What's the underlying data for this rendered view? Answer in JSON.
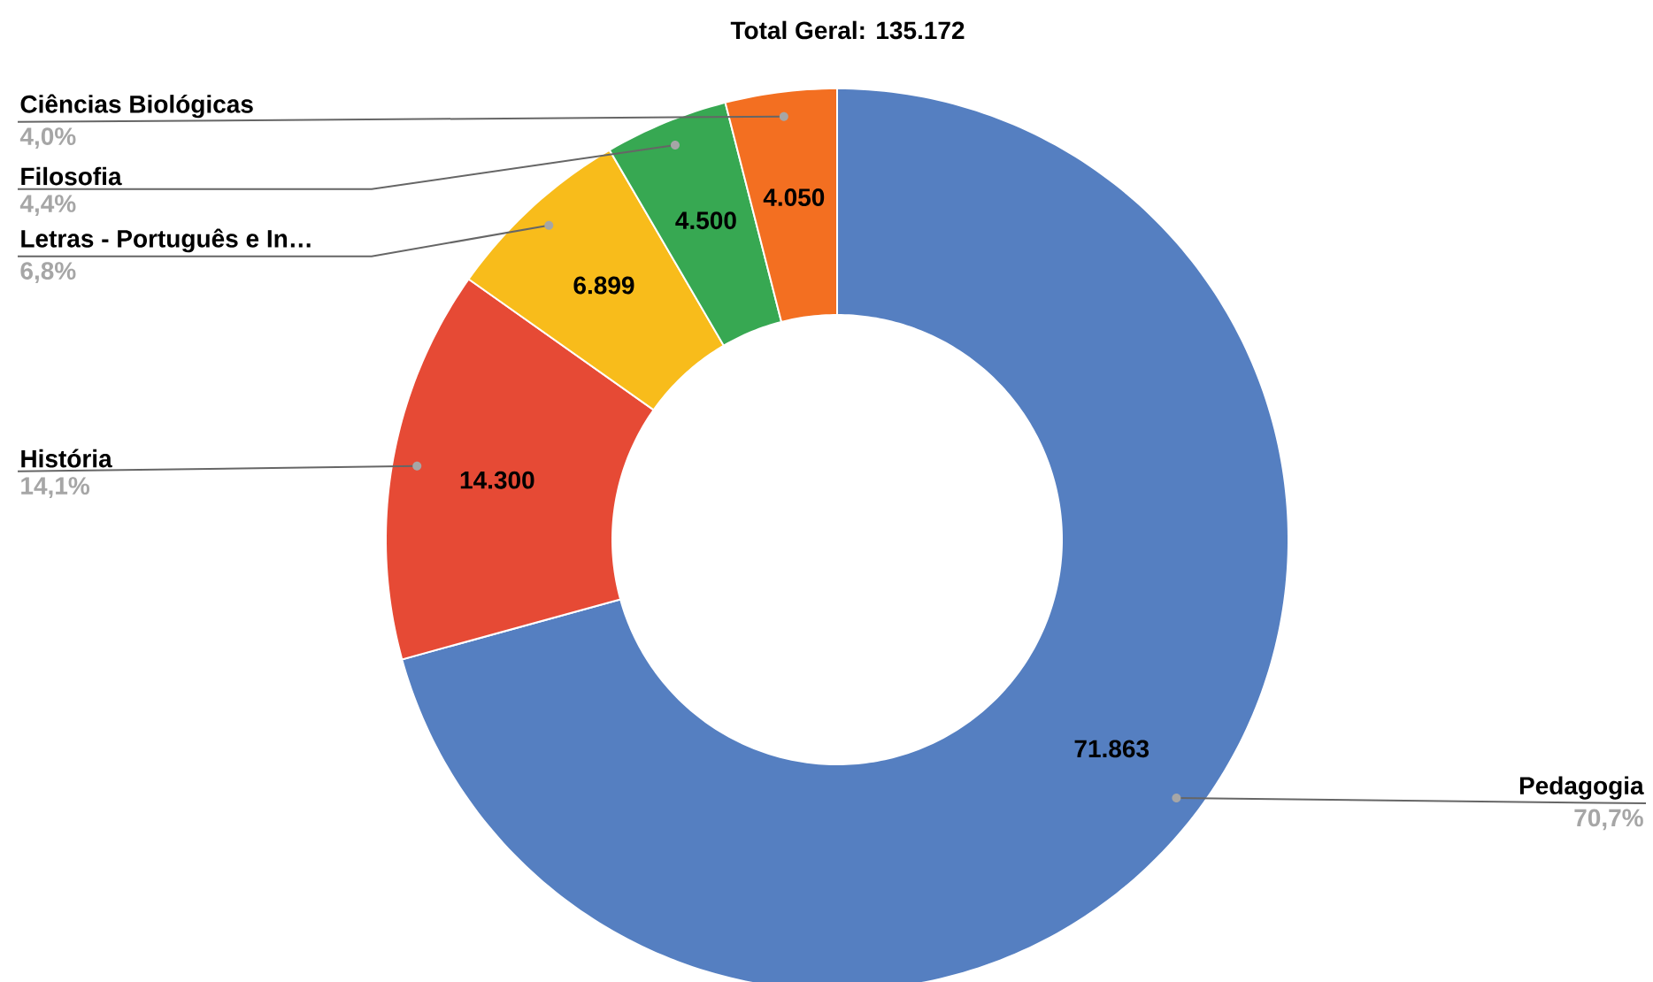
{
  "chart_data": {
    "type": "donut",
    "title": "Total Geral: 135.172",
    "categories": [
      "Pedagogia",
      "História",
      "Letras - Português e In…",
      "Filosofia",
      "Ciências Biológicas"
    ],
    "values": [
      71863,
      14300,
      6899,
      4500,
      4050
    ],
    "colors": [
      "#557fc1",
      "#e64a35",
      "#f8bc1b",
      "#37a852",
      "#f36f21"
    ],
    "value_labels": [
      "71.863",
      "14.300",
      "6.899",
      "4.500",
      "4.050"
    ],
    "annotations": [
      "70,7%",
      "14,1%",
      "6,8%",
      "4,4%",
      "4,0%"
    ]
  }
}
